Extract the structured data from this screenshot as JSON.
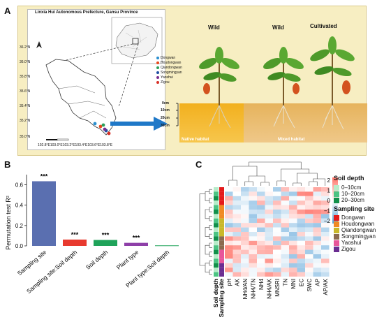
{
  "panels": {
    "a_letter": "A",
    "b_letter": "B",
    "c_letter": "C"
  },
  "panel_a": {
    "map_title": "Linxia Hui Autonomous Prefecture, Gansu Province",
    "lat_ticks": [
      "36.2°N",
      "36.0°N",
      "35.8°N",
      "35.6°N",
      "35.4°N",
      "35.2°N",
      "35.0°N"
    ],
    "lon_ticks": "102.8°E103.0°E103.2°E103.4°E103.6°E103.8°E",
    "sites": [
      {
        "name": "Dongwan",
        "color": "#2b8fcf"
      },
      {
        "name": "Houdongwan",
        "color": "#e8491d"
      },
      {
        "name": "Qiandongwan",
        "color": "#2ca05a"
      },
      {
        "name": "Songmingyan",
        "color": "#1f4fa3"
      },
      {
        "name": "Yaoshui",
        "color": "#7a2e8e"
      },
      {
        "name": "Zigou",
        "color": "#d73027"
      }
    ],
    "depth_labels": [
      "0cm",
      "10cm",
      "20cm",
      "30cm"
    ],
    "plant_labels": [
      "Wild",
      "Wild",
      "Cultivated"
    ],
    "habitat_native": "Native habitat",
    "habitat_mixed": "Mixed habitat"
  },
  "chart_data": {
    "type": "bar",
    "ylabel": "Permutation test R²",
    "ylim": [
      0,
      0.7
    ],
    "yticks": [
      "0.0",
      "0.2",
      "0.4",
      "0.6"
    ],
    "categories": [
      "Sampling site",
      "Sampling site:Soil depth",
      "Soil depth",
      "Plant type",
      "Plant type:Soil depth"
    ],
    "values": [
      0.635,
      0.062,
      0.058,
      0.03,
      0.005
    ],
    "colors": [
      "#5a6fb0",
      "#e83a2f",
      "#1fa35a",
      "#8e3fa8",
      "#1fa35a"
    ],
    "significance": [
      "***",
      "***",
      "***",
      "***",
      ""
    ]
  },
  "panel_c": {
    "columns": [
      "pH",
      "AK",
      "NH4/AN",
      "NH4/TN",
      "NH4",
      "NH4/AK",
      "MNSRI",
      "TN",
      "MNI",
      "EC",
      "SWC",
      "AP",
      "AP/AK"
    ],
    "row_annotation_labels": [
      "Soil depth",
      "Sampling site"
    ],
    "legend_depth_title": "Soil depth",
    "legend_depth_items": [
      "0–10cm",
      "10–20cm",
      "20–30cm"
    ],
    "legend_depth_colors": [
      "#b7ecc9",
      "#4cc483",
      "#11904a"
    ],
    "legend_site_title": "Sampling site",
    "legend_site_items": [
      "Dongwan",
      "Houdongwan",
      "Qiandongwan",
      "Songmingyan",
      "Yaoshui",
      "Zigou"
    ],
    "legend_site_colors": [
      "#e41a1c",
      "#f08a24",
      "#c9b82a",
      "#8b6a4f",
      "#e8559a",
      "#6a2c91"
    ],
    "scale_ticks": [
      "2",
      "1",
      "0",
      "−1",
      "−2"
    ]
  }
}
